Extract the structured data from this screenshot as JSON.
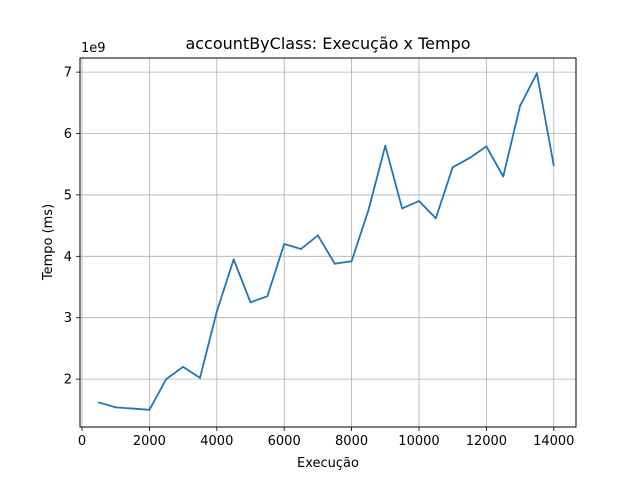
{
  "chart_data": {
    "type": "line",
    "title": "accountByClass: Execução x Tempo",
    "xlabel": "Execução",
    "ylabel": "Tempo (ms)",
    "y_offset_label": "1e9",
    "xlim": [
      -60,
      14660
    ],
    "ylim": [
      1.22,
      7.23
    ],
    "xticks": [
      0,
      2000,
      4000,
      6000,
      8000,
      10000,
      12000,
      14000
    ],
    "xtick_labels": [
      "0",
      "2000",
      "4000",
      "6000",
      "8000",
      "10000",
      "12000",
      "14000"
    ],
    "yticks": [
      2,
      3,
      4,
      5,
      6,
      7
    ],
    "ytick_labels": [
      "2",
      "3",
      "4",
      "5",
      "6",
      "7"
    ],
    "grid": true,
    "series": [
      {
        "color": "#1f77b4",
        "x": [
          500,
          1000,
          1500,
          2000,
          2500,
          3000,
          3500,
          4000,
          4500,
          5000,
          5500,
          6000,
          6500,
          7000,
          7500,
          8000,
          8500,
          9000,
          9500,
          10000,
          10500,
          11000,
          11500,
          12000,
          12500,
          13000,
          13500,
          14000
        ],
        "y": [
          1.62,
          1.54,
          1.52,
          1.5,
          2.0,
          2.2,
          2.02,
          3.1,
          3.95,
          3.25,
          3.35,
          4.2,
          4.12,
          4.34,
          3.88,
          3.92,
          4.75,
          5.8,
          4.78,
          4.9,
          4.62,
          5.45,
          5.6,
          5.79,
          5.3,
          6.45,
          6.98,
          5.48
        ]
      }
    ]
  }
}
